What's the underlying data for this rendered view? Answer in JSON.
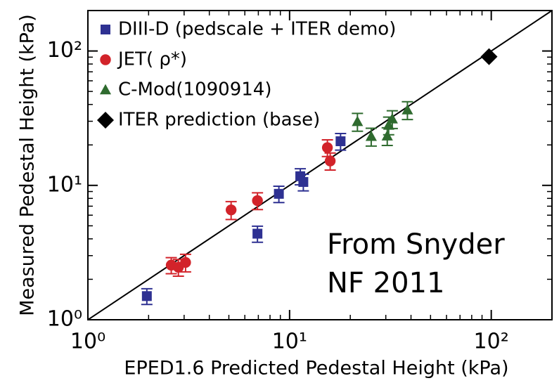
{
  "chart_data": {
    "type": "scatter",
    "x_label": "EPED1.6 Predicted Pedestal Height (kPa)",
    "y_label": "Measured Pedestal Height (kPa)",
    "xscale": "log",
    "yscale": "log",
    "xlim": [
      1,
      200
    ],
    "ylim": [
      1,
      200
    ],
    "xticks": [
      {
        "value": 1,
        "label": "10⁰"
      },
      {
        "value": 10,
        "label": "10¹"
      },
      {
        "value": 100,
        "label": "10²"
      }
    ],
    "yticks": [
      {
        "value": 1,
        "label": "10⁰"
      },
      {
        "value": 10,
        "label": "10¹"
      },
      {
        "value": 100,
        "label": "10²"
      }
    ],
    "legend": "upper-left",
    "annotation": [
      "From Snyder",
      "NF 2011"
    ],
    "series": [
      {
        "name": "DIII-D  (pedscale + ITER demo)",
        "color": "#2e3192",
        "marker": "square",
        "x": [
          1.96,
          6.93,
          8.85,
          11.3,
          11.7,
          17.9
        ],
        "values": [
          1.5,
          4.37,
          8.65,
          11.7,
          10.6,
          21.3
        ],
        "errors": [
          0.2,
          0.6,
          1.2,
          1.6,
          1.5,
          3
        ]
      },
      {
        "name": "JET( ρ*)",
        "color": "#d2232a",
        "marker": "circle",
        "x": [
          5.13,
          6.93,
          2.59,
          2.81,
          3.05,
          15.4,
          15.9
        ],
        "values": [
          6.57,
          7.7,
          2.55,
          2.46,
          2.67,
          19.1,
          15.2
        ],
        "errors": [
          1,
          1.1,
          0.35,
          0.35,
          0.4,
          2.7,
          2.2
        ]
      },
      {
        "name": "C-Mod(1090914)",
        "color": "#2f6b2f",
        "marker": "triangle",
        "x": [
          21.7,
          25.4,
          30.5,
          31,
          32.3,
          38.4
        ],
        "values": [
          29.8,
          23.1,
          23.3,
          28,
          31.2,
          36.4
        ],
        "errors": [
          4.5,
          3.5,
          3.5,
          4.2,
          4.7,
          5.5
        ]
      },
      {
        "name": "ITER prediction (base)",
        "color": "#000000",
        "marker": "diamond",
        "x": [
          97.5
        ],
        "values": [
          90.8
        ]
      }
    ]
  }
}
